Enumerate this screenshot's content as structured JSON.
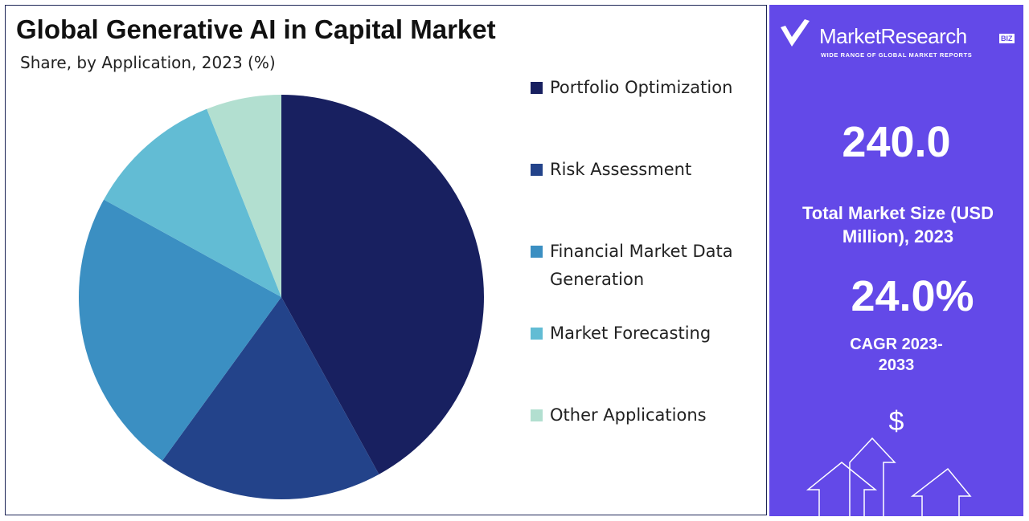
{
  "chart_data": {
    "type": "pie",
    "title": "Global Generative AI in Capital Market",
    "subtitle": "Share, by Application, 2023 (%)",
    "categories": [
      "Portfolio Optimization",
      "Risk Assessment",
      "Financial Market Data Generation",
      "Market Forecasting",
      "Other Applications"
    ],
    "values": [
      42,
      18,
      23,
      11,
      6
    ],
    "colors": [
      "#182060",
      "#23438a",
      "#3b8fc2",
      "#62bcd4",
      "#b2dfd0"
    ]
  },
  "panel": {
    "brand": "MarketResearch",
    "brand_tag": "BIZ",
    "tagline": "WIDE RANGE OF GLOBAL MARKET REPORTS",
    "market_size": "240.0",
    "market_size_label": "Total Market Size (USD Million), 2023",
    "cagr": "24.0%",
    "cagr_label": "CAGR 2023-2033",
    "currency": "$"
  }
}
